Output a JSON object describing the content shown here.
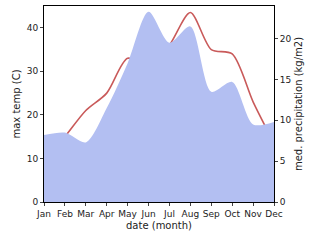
{
  "chart_data": {
    "type": "line",
    "x_label": "date (month)",
    "y_label": "max temp (C)",
    "y2_label": "med. precipitation (kg/m2)",
    "categories": [
      "Jan",
      "Feb",
      "Mar",
      "Apr",
      "May",
      "Jun",
      "Jul",
      "Aug",
      "Sep",
      "Oct",
      "Nov",
      "Dec"
    ],
    "series": [
      {
        "name": "med. precipitation (kg/m2)",
        "type": "area",
        "axis": "y2",
        "color": "#b3bff2",
        "values": [
          8.2,
          8.5,
          7.3,
          11.5,
          17,
          23.3,
          19.5,
          21.5,
          13.5,
          14.7,
          9.5,
          9.8
        ]
      },
      {
        "name": "max temp (C)",
        "type": "line",
        "color": "#c95a5a",
        "values": [
          9.5,
          15,
          21,
          25,
          33,
          31,
          36,
          43.5,
          35,
          34,
          23,
          13.5
        ]
      }
    ],
    "ylim": [
      0,
      45
    ],
    "yticks": [
      0,
      10,
      20,
      30,
      40
    ],
    "y2lim": [
      0,
      24
    ],
    "y2ticks": [
      0,
      5,
      10,
      15,
      20
    ],
    "grid": false
  }
}
